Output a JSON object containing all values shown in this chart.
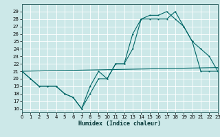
{
  "xlabel": "Humidex (Indice chaleur)",
  "bg_color": "#cce8e8",
  "grid_color": "#ffffff",
  "line_color": "#006666",
  "xlim": [
    0,
    23
  ],
  "ylim": [
    15.5,
    30.0
  ],
  "xticks": [
    0,
    1,
    2,
    3,
    4,
    5,
    6,
    7,
    8,
    9,
    10,
    11,
    12,
    13,
    14,
    15,
    16,
    17,
    18,
    19,
    20,
    21,
    22,
    23
  ],
  "yticks": [
    16,
    17,
    18,
    19,
    20,
    21,
    22,
    23,
    24,
    25,
    26,
    27,
    28,
    29
  ],
  "series1_x": [
    0,
    1,
    2,
    3,
    4,
    5,
    6,
    7,
    8,
    9,
    10,
    11,
    12,
    13,
    14,
    15,
    16,
    17,
    18,
    19,
    20,
    21,
    22,
    23
  ],
  "series1_y": [
    21,
    20,
    19,
    19,
    19,
    18,
    17.5,
    16,
    19,
    21,
    20,
    22,
    22,
    24,
    28,
    28,
    28,
    28,
    29,
    27,
    25,
    24,
    23,
    21
  ],
  "series2_x": [
    0,
    1,
    2,
    3,
    4,
    5,
    6,
    7,
    8,
    9,
    10,
    11,
    12,
    13,
    14,
    15,
    16,
    17,
    18,
    19,
    20,
    21,
    22,
    23
  ],
  "series2_y": [
    21,
    20,
    19,
    19,
    19,
    18,
    17.5,
    16,
    18,
    20,
    20,
    22,
    22,
    26,
    28,
    28.5,
    28.5,
    29,
    28,
    27,
    25,
    21,
    21,
    21
  ],
  "series3_x": [
    0,
    23
  ],
  "series3_y": [
    21,
    21.5
  ]
}
